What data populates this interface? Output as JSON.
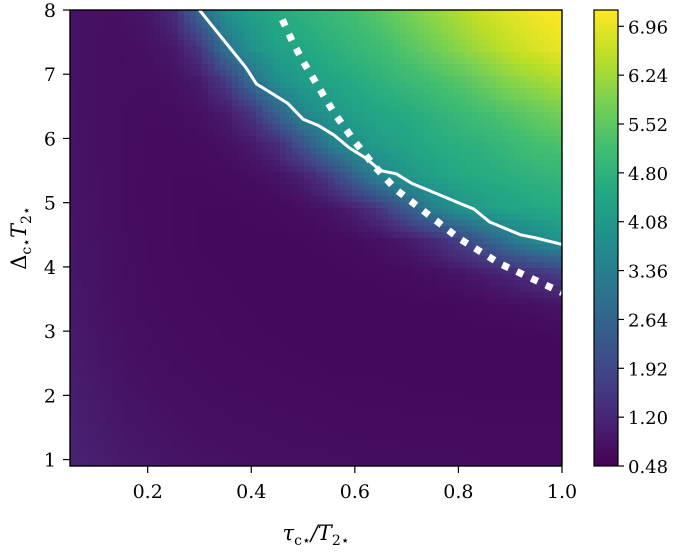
{
  "chart_data": {
    "type": "heatmap",
    "title": "",
    "xlabel": "τ_c⋆/T_2⋆",
    "ylabel": "Δ_c⋆ T_2⋆",
    "xlabel_parts": {
      "main": "τ",
      "sub1": "c⋆",
      "mid": "/T",
      "sub2": "2⋆"
    },
    "ylabel_parts": {
      "main": "Δ",
      "sub1": "c⋆",
      "mid": "T",
      "sub2": "2⋆"
    },
    "xlim": [
      0.05,
      1.0
    ],
    "ylim": [
      0.9,
      8.0
    ],
    "x_ticks": [
      0.2,
      0.4,
      0.6,
      0.8,
      1.0
    ],
    "x_tick_labels": [
      "0.2",
      "0.4",
      "0.6",
      "0.8",
      "1.0"
    ],
    "y_ticks": [
      1,
      2,
      3,
      4,
      5,
      6,
      7,
      8
    ],
    "y_tick_labels": [
      "1",
      "2",
      "3",
      "4",
      "5",
      "6",
      "7",
      "8"
    ],
    "colormap": "viridis",
    "color_range": [
      0.48,
      7.2
    ],
    "colorbar_ticks": [
      0.48,
      1.2,
      1.92,
      2.64,
      3.36,
      4.08,
      4.8,
      5.52,
      6.24,
      6.96
    ],
    "colorbar_tick_labels": [
      "0.48",
      "1.20",
      "1.92",
      "2.64",
      "3.36",
      "4.08",
      "4.80",
      "5.52",
      "6.24",
      "6.96"
    ],
    "grid": false,
    "field": {
      "x": [
        0.05,
        0.1,
        0.15,
        0.2,
        0.25,
        0.3,
        0.35,
        0.4,
        0.45,
        0.5,
        0.55,
        0.6,
        0.65,
        0.7,
        0.75,
        0.8,
        0.85,
        0.9,
        0.95,
        1.0
      ],
      "y": [
        0.9,
        1.4,
        1.9,
        2.4,
        2.9,
        3.4,
        3.9,
        4.4,
        4.9,
        5.4,
        5.9,
        6.4,
        6.9,
        7.4,
        8.0
      ],
      "z": [
        [
          1.15,
          1.05,
          0.95,
          0.9,
          0.85,
          0.82,
          0.8,
          0.78,
          0.76,
          0.75,
          0.74,
          0.73,
          0.72,
          0.72,
          0.71,
          0.71,
          0.7,
          0.7,
          0.7,
          0.7
        ],
        [
          1.1,
          1.0,
          0.9,
          0.85,
          0.8,
          0.77,
          0.75,
          0.73,
          0.72,
          0.71,
          0.7,
          0.69,
          0.69,
          0.68,
          0.68,
          0.68,
          0.67,
          0.67,
          0.67,
          0.67
        ],
        [
          1.05,
          0.95,
          0.85,
          0.8,
          0.76,
          0.73,
          0.71,
          0.7,
          0.69,
          0.68,
          0.67,
          0.66,
          0.66,
          0.65,
          0.65,
          0.65,
          0.64,
          0.64,
          0.64,
          0.64
        ],
        [
          1.0,
          0.9,
          0.8,
          0.76,
          0.72,
          0.7,
          0.68,
          0.67,
          0.66,
          0.65,
          0.64,
          0.63,
          0.63,
          0.63,
          0.62,
          0.62,
          0.62,
          0.62,
          0.62,
          0.62
        ],
        [
          0.95,
          0.86,
          0.78,
          0.73,
          0.7,
          0.68,
          0.66,
          0.65,
          0.64,
          0.63,
          0.62,
          0.62,
          0.61,
          0.61,
          0.61,
          0.61,
          0.61,
          0.62,
          0.63,
          0.65
        ],
        [
          0.92,
          0.83,
          0.76,
          0.71,
          0.68,
          0.66,
          0.65,
          0.64,
          0.63,
          0.62,
          0.62,
          0.61,
          0.61,
          0.62,
          0.63,
          0.65,
          0.68,
          0.72,
          0.78,
          0.85
        ],
        [
          0.9,
          0.81,
          0.74,
          0.7,
          0.67,
          0.65,
          0.64,
          0.63,
          0.62,
          0.62,
          0.63,
          0.64,
          0.66,
          0.69,
          0.75,
          0.85,
          1.0,
          1.2,
          1.45,
          1.7
        ],
        [
          0.88,
          0.8,
          0.73,
          0.69,
          0.66,
          0.64,
          0.63,
          0.63,
          0.63,
          0.64,
          0.66,
          0.7,
          0.78,
          0.92,
          1.2,
          1.7,
          2.4,
          3.1,
          3.6,
          3.9
        ],
        [
          0.86,
          0.79,
          0.72,
          0.68,
          0.66,
          0.64,
          0.64,
          0.65,
          0.67,
          0.72,
          0.82,
          1.05,
          1.55,
          2.4,
          3.3,
          3.9,
          4.2,
          4.4,
          4.5,
          4.6
        ],
        [
          0.85,
          0.78,
          0.72,
          0.68,
          0.66,
          0.66,
          0.68,
          0.72,
          0.82,
          1.05,
          1.6,
          2.6,
          3.5,
          4.0,
          4.3,
          4.5,
          4.6,
          4.7,
          4.8,
          4.9
        ],
        [
          0.84,
          0.77,
          0.72,
          0.69,
          0.68,
          0.7,
          0.76,
          0.92,
          1.3,
          2.2,
          3.3,
          3.9,
          4.2,
          4.4,
          4.6,
          4.7,
          4.8,
          5.0,
          5.2,
          5.3
        ],
        [
          0.83,
          0.77,
          0.72,
          0.7,
          0.71,
          0.78,
          0.95,
          1.5,
          2.6,
          3.6,
          4.0,
          4.3,
          4.5,
          4.6,
          4.8,
          5.0,
          5.2,
          5.4,
          5.6,
          5.8
        ],
        [
          0.82,
          0.77,
          0.73,
          0.73,
          0.78,
          0.95,
          1.6,
          2.9,
          3.8,
          4.2,
          4.4,
          4.6,
          4.8,
          5.0,
          5.2,
          5.4,
          5.7,
          6.0,
          6.2,
          6.4
        ],
        [
          0.82,
          0.77,
          0.74,
          0.78,
          0.92,
          1.5,
          3.0,
          3.9,
          4.3,
          4.5,
          4.7,
          4.9,
          5.1,
          5.4,
          5.7,
          6.0,
          6.3,
          6.6,
          6.8,
          7.0
        ],
        [
          0.82,
          0.78,
          0.78,
          0.88,
          1.3,
          2.8,
          3.9,
          4.3,
          4.6,
          4.8,
          5.0,
          5.2,
          5.5,
          5.8,
          6.1,
          6.4,
          6.7,
          6.9,
          7.1,
          7.2
        ]
      ]
    },
    "series": [
      {
        "style": "solid",
        "color": "#ffffff",
        "x": [
          0.3,
          0.33,
          0.36,
          0.39,
          0.41,
          0.44,
          0.47,
          0.5,
          0.53,
          0.56,
          0.59,
          0.62,
          0.65,
          0.68,
          0.71,
          0.74,
          0.77,
          0.8,
          0.83,
          0.86,
          0.89,
          0.92,
          0.95,
          1.0
        ],
        "y": [
          8.0,
          7.7,
          7.4,
          7.1,
          6.85,
          6.7,
          6.55,
          6.3,
          6.2,
          6.05,
          5.85,
          5.7,
          5.5,
          5.45,
          5.3,
          5.2,
          5.1,
          5.0,
          4.9,
          4.7,
          4.6,
          4.5,
          4.45,
          4.35
        ]
      },
      {
        "style": "dotted",
        "color": "#ffffff",
        "x": [
          0.46,
          0.48,
          0.5,
          0.53,
          0.56,
          0.6,
          0.64,
          0.68,
          0.72,
          0.76,
          0.8,
          0.84,
          0.88,
          0.92,
          0.96,
          1.0
        ],
        "y": [
          7.85,
          7.5,
          7.2,
          6.8,
          6.4,
          5.95,
          5.55,
          5.2,
          4.95,
          4.7,
          4.45,
          4.25,
          4.05,
          3.9,
          3.75,
          3.6
        ]
      }
    ]
  }
}
